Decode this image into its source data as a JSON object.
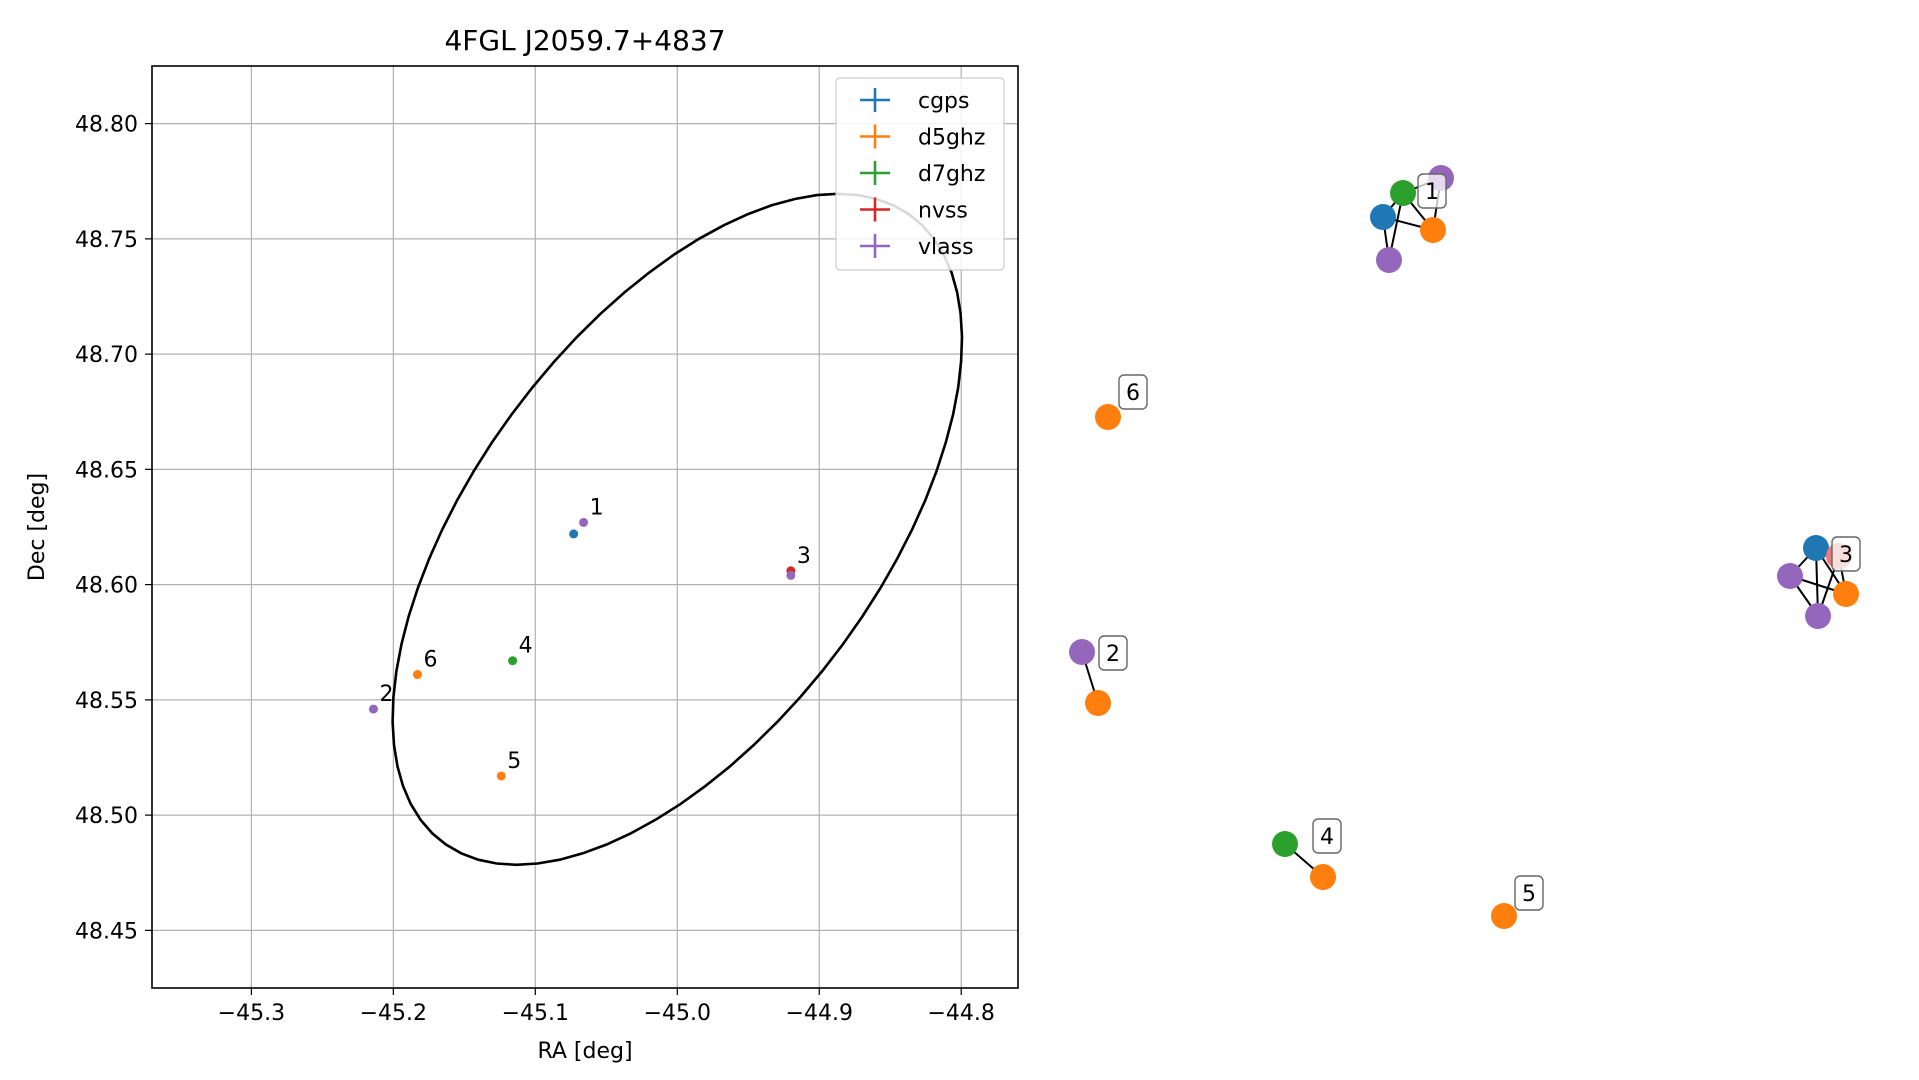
{
  "chart_data": [
    {
      "type": "scatter",
      "title": "4FGL J2059.7+4837",
      "xlabel": "RA [deg]",
      "ylabel": "Dec [deg]",
      "xlim": [
        -45.37,
        -44.76
      ],
      "ylim": [
        48.425,
        48.825
      ],
      "xticks": [
        -45.3,
        -45.2,
        -45.1,
        -45.0,
        -44.9,
        -44.8
      ],
      "xtick_labels": [
        "−45.3",
        "−45.2",
        "−45.1",
        "−45.0",
        "−44.9",
        "−44.8"
      ],
      "yticks": [
        48.45,
        48.5,
        48.55,
        48.6,
        48.65,
        48.7,
        48.75,
        48.8
      ],
      "ytick_labels": [
        "48.45",
        "48.50",
        "48.55",
        "48.60",
        "48.65",
        "48.70",
        "48.75",
        "48.80"
      ],
      "grid": true,
      "legend_position": "top-right",
      "ellipse": {
        "center": [
          -45.0,
          48.624
        ],
        "semi_axis_ra": 0.223,
        "semi_axis_dec": 0.108,
        "angle_deg": 30
      },
      "series": [
        {
          "name": "cgps",
          "color": "#1f77b4",
          "points": [
            {
              "x": -45.073,
              "y": 48.622
            }
          ]
        },
        {
          "name": "d5ghz",
          "color": "#ff7f0e",
          "points": [
            {
              "x": -45.183,
              "y": 48.561
            },
            {
              "x": -45.124,
              "y": 48.517
            }
          ]
        },
        {
          "name": "d7ghz",
          "color": "#2ca02c",
          "points": [
            {
              "x": -45.116,
              "y": 48.567
            }
          ]
        },
        {
          "name": "nvss",
          "color": "#d62728",
          "points": [
            {
              "x": -44.92,
              "y": 48.606
            }
          ]
        },
        {
          "name": "vlass",
          "color": "#9467bd",
          "points": [
            {
              "x": -45.066,
              "y": 48.627
            },
            {
              "x": -45.214,
              "y": 48.546
            },
            {
              "x": -44.92,
              "y": 48.604
            }
          ]
        }
      ],
      "point_labels": [
        {
          "text": "1",
          "x": -45.066,
          "y": 48.627
        },
        {
          "text": "2",
          "x": -45.214,
          "y": 48.546
        },
        {
          "text": "3",
          "x": -44.92,
          "y": 48.606
        },
        {
          "text": "4",
          "x": -45.116,
          "y": 48.567
        },
        {
          "text": "5",
          "x": -45.124,
          "y": 48.517
        },
        {
          "text": "6",
          "x": -45.183,
          "y": 48.561
        }
      ]
    },
    {
      "type": "network",
      "colors": {
        "cgps": "#1f77b4",
        "d5ghz": "#ff7f0e",
        "d7ghz": "#2ca02c",
        "nvss": "#e77c7c",
        "vlass": "#9467bd"
      },
      "groups": [
        {
          "label": "1",
          "nodes": [
            "cgps",
            "d7ghz",
            "d5ghz",
            "vlass",
            "vlass"
          ]
        },
        {
          "label": "2",
          "nodes": [
            "vlass",
            "d5ghz"
          ]
        },
        {
          "label": "3",
          "nodes": [
            "cgps",
            "nvss",
            "vlass",
            "d5ghz",
            "vlass"
          ]
        },
        {
          "label": "4",
          "nodes": [
            "d7ghz",
            "d5ghz"
          ]
        },
        {
          "label": "5",
          "nodes": [
            "d5ghz"
          ]
        },
        {
          "label": "6",
          "nodes": [
            "d5ghz"
          ]
        }
      ]
    }
  ]
}
